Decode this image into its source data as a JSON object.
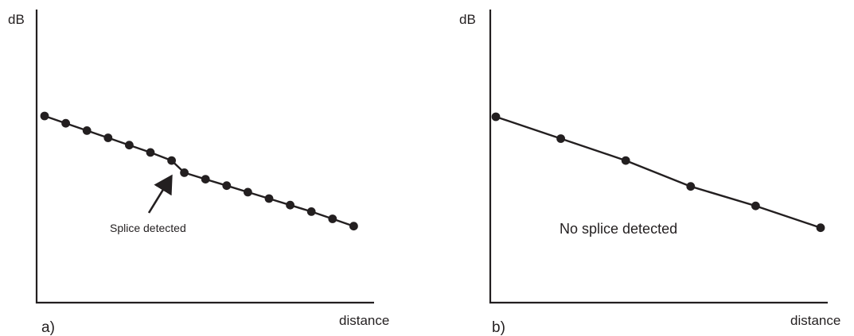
{
  "panels": [
    {
      "id": "a",
      "panel_label": "a)",
      "ylabel": "dB",
      "xlabel": "distance",
      "annotation": "Splice detected",
      "trace": [
        [
          0,
          0.0
        ],
        [
          1,
          0.9
        ],
        [
          2,
          1.8
        ],
        [
          3,
          2.7
        ],
        [
          4,
          3.6
        ],
        [
          5,
          4.5
        ],
        [
          6,
          5.5
        ],
        [
          6.6,
          7.0
        ],
        [
          7.6,
          7.8
        ],
        [
          8.6,
          8.6
        ],
        [
          9.6,
          9.4
        ],
        [
          10.6,
          10.2
        ],
        [
          11.6,
          11.0
        ],
        [
          12.6,
          11.8
        ],
        [
          13.6,
          12.7
        ],
        [
          14.6,
          13.6
        ]
      ]
    },
    {
      "id": "b",
      "panel_label": "b)",
      "ylabel": "dB",
      "xlabel": "distance",
      "annotation": "No splice detected",
      "trace": [
        [
          0,
          0.0
        ],
        [
          1,
          2.7
        ],
        [
          2,
          5.4
        ],
        [
          3,
          8.6
        ],
        [
          4,
          11.0
        ],
        [
          5,
          13.7
        ]
      ]
    }
  ]
}
